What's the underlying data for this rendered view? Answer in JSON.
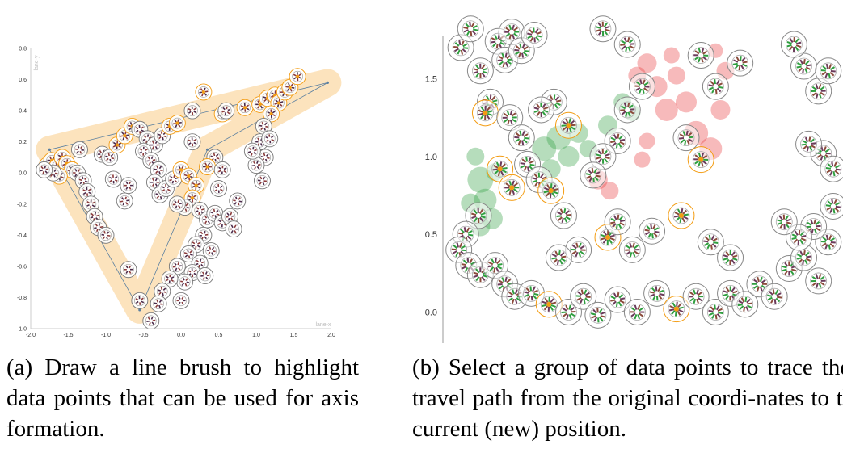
{
  "chart_data": [
    {
      "type": "scatter",
      "panel": "a",
      "title": "",
      "xlabel": "lane-x",
      "ylabel": "lane-y",
      "xlim": [
        -2.0,
        2.0
      ],
      "ylim": [
        -1.0,
        0.8
      ],
      "x_ticks": [
        "-2.0",
        "-1.5",
        "-1.0",
        "-0.5",
        "0.0",
        "0.5",
        "1.0",
        "1.5",
        "2.0"
      ],
      "y_ticks": [
        "0.8",
        "0.6",
        "0.4",
        "0.2",
        "0.0",
        "-0.2",
        "-0.4",
        "-0.6",
        "-0.8",
        "-1.0"
      ],
      "brush_path": [
        [
          -1.75,
          0.15
        ],
        [
          -0.55,
          -0.88
        ],
        [
          0.35,
          0.15
        ],
        [
          1.95,
          0.58
        ],
        [
          -1.75,
          0.15
        ]
      ],
      "brush_color": "#f5b041",
      "highlight_color": "#f39c12",
      "point_color": "#4a2a4a",
      "points": [
        {
          "x": -1.78,
          "y": 0.05,
          "h": 1
        },
        {
          "x": -1.72,
          "y": 0.08,
          "h": 1
        },
        {
          "x": -1.65,
          "y": 0.04,
          "h": 1
        },
        {
          "x": -1.58,
          "y": 0.1,
          "h": 1
        },
        {
          "x": -1.52,
          "y": 0.06,
          "h": 1
        },
        {
          "x": -1.45,
          "y": 0.02,
          "h": 1
        },
        {
          "x": -1.62,
          "y": -0.02,
          "h": 1
        },
        {
          "x": -1.7,
          "y": 0.0,
          "h": 0
        },
        {
          "x": -1.82,
          "y": 0.02,
          "h": 0
        },
        {
          "x": -1.38,
          "y": 0.0,
          "h": 0
        },
        {
          "x": -1.3,
          "y": -0.05,
          "h": 0
        },
        {
          "x": -1.25,
          "y": -0.12,
          "h": 0
        },
        {
          "x": -1.2,
          "y": -0.2,
          "h": 0
        },
        {
          "x": -1.15,
          "y": -0.28,
          "h": 0
        },
        {
          "x": -1.1,
          "y": -0.35,
          "h": 0
        },
        {
          "x": -1.35,
          "y": 0.15,
          "h": 0
        },
        {
          "x": -1.05,
          "y": 0.12,
          "h": 0
        },
        {
          "x": -0.95,
          "y": 0.1,
          "h": 0
        },
        {
          "x": -0.85,
          "y": 0.18,
          "h": 1
        },
        {
          "x": -0.75,
          "y": 0.24,
          "h": 1
        },
        {
          "x": -0.65,
          "y": 0.3,
          "h": 1
        },
        {
          "x": -0.55,
          "y": 0.28,
          "h": 0
        },
        {
          "x": -0.45,
          "y": 0.22,
          "h": 0
        },
        {
          "x": -0.35,
          "y": 0.18,
          "h": 0
        },
        {
          "x": -0.25,
          "y": 0.24,
          "h": 0
        },
        {
          "x": -0.15,
          "y": 0.3,
          "h": 1
        },
        {
          "x": -0.05,
          "y": 0.32,
          "h": 1
        },
        {
          "x": 0.15,
          "y": 0.4,
          "h": 0
        },
        {
          "x": 0.55,
          "y": 0.38,
          "h": 1
        },
        {
          "x": 0.3,
          "y": 0.52,
          "h": 1
        },
        {
          "x": 0.85,
          "y": 0.42,
          "h": 1
        },
        {
          "x": 1.05,
          "y": 0.44,
          "h": 1
        },
        {
          "x": 1.15,
          "y": 0.48,
          "h": 1
        },
        {
          "x": 1.25,
          "y": 0.5,
          "h": 1
        },
        {
          "x": 1.3,
          "y": 0.45,
          "h": 1
        },
        {
          "x": 1.38,
          "y": 0.52,
          "h": 1
        },
        {
          "x": 1.45,
          "y": 0.55,
          "h": 1
        },
        {
          "x": 1.55,
          "y": 0.62,
          "h": 1
        },
        {
          "x": 1.2,
          "y": 0.38,
          "h": 1
        },
        {
          "x": 1.1,
          "y": 0.3,
          "h": 0
        },
        {
          "x": 1.05,
          "y": 0.2,
          "h": 0
        },
        {
          "x": 1.12,
          "y": 0.1,
          "h": 0
        },
        {
          "x": 1.0,
          "y": 0.05,
          "h": 0
        },
        {
          "x": 1.08,
          "y": -0.05,
          "h": 0
        },
        {
          "x": 0.95,
          "y": 0.14,
          "h": 0
        },
        {
          "x": 1.18,
          "y": 0.22,
          "h": 0
        },
        {
          "x": -0.5,
          "y": 0.14,
          "h": 0
        },
        {
          "x": -0.4,
          "y": 0.08,
          "h": 0
        },
        {
          "x": -0.3,
          "y": 0.02,
          "h": 0
        },
        {
          "x": -0.35,
          "y": -0.06,
          "h": 0
        },
        {
          "x": -0.28,
          "y": -0.14,
          "h": 0
        },
        {
          "x": -0.2,
          "y": -0.1,
          "h": 0
        },
        {
          "x": -0.1,
          "y": -0.04,
          "h": 0
        },
        {
          "x": 0.0,
          "y": 0.02,
          "h": 1
        },
        {
          "x": 0.1,
          "y": -0.02,
          "h": 1
        },
        {
          "x": 0.2,
          "y": -0.08,
          "h": 1
        },
        {
          "x": 0.15,
          "y": -0.16,
          "h": 1
        },
        {
          "x": 0.05,
          "y": -0.22,
          "h": 0
        },
        {
          "x": -0.05,
          "y": -0.2,
          "h": 0
        },
        {
          "x": 0.25,
          "y": -0.24,
          "h": 0
        },
        {
          "x": 0.35,
          "y": -0.3,
          "h": 0
        },
        {
          "x": 0.45,
          "y": -0.26,
          "h": 0
        },
        {
          "x": 0.55,
          "y": -0.32,
          "h": 0
        },
        {
          "x": 0.65,
          "y": -0.28,
          "h": 0
        },
        {
          "x": 0.7,
          "y": -0.36,
          "h": 0
        },
        {
          "x": 0.3,
          "y": -0.4,
          "h": 0
        },
        {
          "x": 0.2,
          "y": -0.46,
          "h": 0
        },
        {
          "x": 0.1,
          "y": -0.52,
          "h": 0
        },
        {
          "x": 0.25,
          "y": -0.58,
          "h": 0
        },
        {
          "x": 0.15,
          "y": -0.64,
          "h": 0
        },
        {
          "x": 0.05,
          "y": -0.7,
          "h": 0
        },
        {
          "x": 0.32,
          "y": -0.66,
          "h": 0
        },
        {
          "x": 0.4,
          "y": -0.5,
          "h": 0
        },
        {
          "x": -0.05,
          "y": -0.6,
          "h": 0
        },
        {
          "x": -0.15,
          "y": -0.68,
          "h": 0
        },
        {
          "x": -0.25,
          "y": -0.76,
          "h": 0
        },
        {
          "x": -0.3,
          "y": -0.84,
          "h": 0
        },
        {
          "x": 0.0,
          "y": -0.82,
          "h": 0
        },
        {
          "x": 0.45,
          "y": 0.1,
          "h": 0
        },
        {
          "x": 0.35,
          "y": 0.04,
          "h": 1
        },
        {
          "x": 0.55,
          "y": 0.02,
          "h": 0
        },
        {
          "x": 0.5,
          "y": -0.1,
          "h": 0
        },
        {
          "x": 0.75,
          "y": -0.18,
          "h": 0
        },
        {
          "x": -0.75,
          "y": -0.18,
          "h": 0
        },
        {
          "x": -0.7,
          "y": -0.08,
          "h": 0
        },
        {
          "x": -1.0,
          "y": -0.4,
          "h": 0
        },
        {
          "x": -0.55,
          "y": -0.82,
          "h": 0
        },
        {
          "x": -0.4,
          "y": -0.95,
          "h": 0
        },
        {
          "x": -0.7,
          "y": -0.62,
          "h": 0
        },
        {
          "x": 0.15,
          "y": 0.2,
          "h": 0
        },
        {
          "x": 0.6,
          "y": 0.4,
          "h": 0
        },
        {
          "x": -0.9,
          "y": -0.04,
          "h": 0
        }
      ]
    },
    {
      "type": "scatter",
      "panel": "b",
      "title": "",
      "xlabel": "",
      "ylabel": "",
      "ylim": [
        -0.2,
        1.85
      ],
      "y_ticks": [
        "1.5",
        "1.0",
        "0.5",
        "0.0"
      ],
      "colors": {
        "green": "#2e9e3e",
        "red": "#e8383d",
        "orange": "#f39c12",
        "glyph": "#555555"
      },
      "points": [
        {
          "x": 0.1,
          "y": 1.7,
          "c": "g"
        },
        {
          "x": 0.2,
          "y": 1.82,
          "c": "g"
        },
        {
          "x": 0.3,
          "y": 1.55,
          "c": "g"
        },
        {
          "x": 0.48,
          "y": 1.74,
          "c": "g"
        },
        {
          "x": 0.55,
          "y": 1.62,
          "c": "g"
        },
        {
          "x": 0.62,
          "y": 1.8,
          "c": "g"
        },
        {
          "x": 0.72,
          "y": 1.68,
          "c": "g"
        },
        {
          "x": 0.85,
          "y": 1.78,
          "c": "g"
        },
        {
          "x": 0.4,
          "y": 1.35,
          "c": "g"
        },
        {
          "x": 0.35,
          "y": 1.28,
          "c": "o"
        },
        {
          "x": 0.6,
          "y": 1.25,
          "c": "g"
        },
        {
          "x": 0.72,
          "y": 1.12,
          "c": "g"
        },
        {
          "x": 0.78,
          "y": 0.95,
          "c": "g"
        },
        {
          "x": 0.5,
          "y": 0.92,
          "c": "o"
        },
        {
          "x": 0.62,
          "y": 0.8,
          "c": "o"
        },
        {
          "x": 0.9,
          "y": 0.85,
          "c": "g"
        },
        {
          "x": 1.02,
          "y": 0.78,
          "c": "o"
        },
        {
          "x": 1.15,
          "y": 0.62,
          "c": "g"
        },
        {
          "x": 0.28,
          "y": 0.62,
          "c": "g"
        },
        {
          "x": 0.15,
          "y": 0.5,
          "c": "g"
        },
        {
          "x": 0.08,
          "y": 0.4,
          "c": "g"
        },
        {
          "x": 0.18,
          "y": 0.3,
          "c": "g"
        },
        {
          "x": 0.3,
          "y": 0.24,
          "c": "g"
        },
        {
          "x": 0.45,
          "y": 0.3,
          "c": "g"
        },
        {
          "x": 0.55,
          "y": 0.18,
          "c": "g"
        },
        {
          "x": 0.65,
          "y": 0.1,
          "c": "g"
        },
        {
          "x": 0.82,
          "y": 0.12,
          "c": "g"
        },
        {
          "x": 1.0,
          "y": 0.05,
          "c": "o"
        },
        {
          "x": 1.2,
          "y": 0.0,
          "c": "g"
        },
        {
          "x": 1.35,
          "y": 0.1,
          "c": "g"
        },
        {
          "x": 1.5,
          "y": -0.02,
          "c": "g"
        },
        {
          "x": 1.7,
          "y": 0.08,
          "c": "g"
        },
        {
          "x": 1.9,
          "y": 0.0,
          "c": "g"
        },
        {
          "x": 2.1,
          "y": 0.12,
          "c": "g"
        },
        {
          "x": 2.3,
          "y": 0.02,
          "c": "o"
        },
        {
          "x": 2.5,
          "y": 0.1,
          "c": "g"
        },
        {
          "x": 2.7,
          "y": 0.0,
          "c": "g"
        },
        {
          "x": 2.85,
          "y": 0.12,
          "c": "g"
        },
        {
          "x": 3.0,
          "y": 0.05,
          "c": "g"
        },
        {
          "x": 3.15,
          "y": 0.18,
          "c": "g"
        },
        {
          "x": 3.3,
          "y": 0.1,
          "c": "g"
        },
        {
          "x": 3.45,
          "y": 0.28,
          "c": "g"
        },
        {
          "x": 3.6,
          "y": 0.35,
          "c": "g"
        },
        {
          "x": 3.75,
          "y": 0.2,
          "c": "g"
        },
        {
          "x": 3.85,
          "y": 0.45,
          "c": "g"
        },
        {
          "x": 3.7,
          "y": 0.55,
          "c": "g"
        },
        {
          "x": 3.55,
          "y": 0.48,
          "c": "g"
        },
        {
          "x": 3.4,
          "y": 0.58,
          "c": "g"
        },
        {
          "x": 3.9,
          "y": 0.68,
          "c": "g"
        },
        {
          "x": 3.8,
          "y": 1.02,
          "c": "g"
        },
        {
          "x": 3.65,
          "y": 1.08,
          "c": "g"
        },
        {
          "x": 3.9,
          "y": 0.92,
          "c": "g"
        },
        {
          "x": 3.75,
          "y": 1.42,
          "c": "g"
        },
        {
          "x": 3.6,
          "y": 1.58,
          "c": "g"
        },
        {
          "x": 3.85,
          "y": 1.55,
          "c": "g"
        },
        {
          "x": 3.5,
          "y": 1.72,
          "c": "g"
        },
        {
          "x": 2.95,
          "y": 1.6,
          "c": "g"
        },
        {
          "x": 2.7,
          "y": 1.45,
          "c": "g"
        },
        {
          "x": 2.55,
          "y": 1.65,
          "c": "g"
        },
        {
          "x": 2.4,
          "y": 1.12,
          "c": "g"
        },
        {
          "x": 2.55,
          "y": 0.98,
          "c": "o"
        },
        {
          "x": 2.35,
          "y": 0.62,
          "c": "o"
        },
        {
          "x": 1.95,
          "y": 1.45,
          "c": "g"
        },
        {
          "x": 1.8,
          "y": 1.3,
          "c": "g"
        },
        {
          "x": 1.7,
          "y": 1.1,
          "c": "g"
        },
        {
          "x": 1.55,
          "y": 1.0,
          "c": "g"
        },
        {
          "x": 1.45,
          "y": 0.88,
          "c": "g"
        },
        {
          "x": 1.6,
          "y": 0.48,
          "c": "o"
        },
        {
          "x": 1.85,
          "y": 0.4,
          "c": "g"
        },
        {
          "x": 1.7,
          "y": 0.58,
          "c": "g"
        },
        {
          "x": 2.05,
          "y": 0.52,
          "c": "g"
        },
        {
          "x": 1.3,
          "y": 0.4,
          "c": "g"
        },
        {
          "x": 1.1,
          "y": 0.35,
          "c": "g"
        },
        {
          "x": 2.85,
          "y": 0.35,
          "c": "g"
        },
        {
          "x": 2.65,
          "y": 0.45,
          "c": "g"
        },
        {
          "x": 1.8,
          "y": 1.72,
          "c": "g"
        },
        {
          "x": 1.55,
          "y": 1.82,
          "c": "g"
        },
        {
          "x": 1.05,
          "y": 1.35,
          "c": "g"
        },
        {
          "x": 1.2,
          "y": 1.2,
          "c": "o"
        },
        {
          "x": 0.92,
          "y": 1.3,
          "c": "g"
        }
      ],
      "blobs": [
        {
          "x": 0.3,
          "y": 0.85,
          "r": 1.0,
          "c": "green"
        },
        {
          "x": 0.35,
          "y": 0.72,
          "r": 0.8,
          "c": "green"
        },
        {
          "x": 0.42,
          "y": 0.6,
          "r": 0.7,
          "c": "green"
        },
        {
          "x": 0.3,
          "y": 0.55,
          "r": 0.6,
          "c": "green"
        },
        {
          "x": 0.25,
          "y": 1.0,
          "r": 0.5,
          "c": "green"
        },
        {
          "x": 0.45,
          "y": 0.9,
          "r": 0.5,
          "c": "green"
        },
        {
          "x": 0.2,
          "y": 0.7,
          "r": 0.6,
          "c": "green"
        },
        {
          "x": 0.95,
          "y": 1.05,
          "r": 0.9,
          "c": "green"
        },
        {
          "x": 1.1,
          "y": 1.12,
          "r": 0.9,
          "c": "green"
        },
        {
          "x": 1.2,
          "y": 1.0,
          "r": 0.7,
          "c": "green"
        },
        {
          "x": 1.02,
          "y": 0.92,
          "r": 0.6,
          "c": "green"
        },
        {
          "x": 1.3,
          "y": 1.15,
          "r": 0.6,
          "c": "green"
        },
        {
          "x": 1.4,
          "y": 1.05,
          "r": 0.5,
          "c": "green"
        },
        {
          "x": 1.6,
          "y": 1.2,
          "r": 0.6,
          "c": "green"
        },
        {
          "x": 1.75,
          "y": 1.35,
          "r": 0.5,
          "c": "green"
        },
        {
          "x": 1.85,
          "y": 1.28,
          "r": 0.4,
          "c": "green"
        },
        {
          "x": 1.0,
          "y": 0.8,
          "r": 0.4,
          "c": "green"
        },
        {
          "x": 1.9,
          "y": 1.52,
          "r": 0.5,
          "c": "red"
        },
        {
          "x": 2.0,
          "y": 1.6,
          "r": 0.6,
          "c": "red"
        },
        {
          "x": 2.1,
          "y": 1.45,
          "r": 0.7,
          "c": "red"
        },
        {
          "x": 2.2,
          "y": 1.3,
          "r": 0.8,
          "c": "red"
        },
        {
          "x": 2.3,
          "y": 1.52,
          "r": 0.5,
          "c": "red"
        },
        {
          "x": 2.4,
          "y": 1.35,
          "r": 0.7,
          "c": "red"
        },
        {
          "x": 2.5,
          "y": 1.15,
          "r": 0.9,
          "c": "red"
        },
        {
          "x": 2.65,
          "y": 1.05,
          "r": 0.8,
          "c": "red"
        },
        {
          "x": 2.75,
          "y": 1.3,
          "r": 0.6,
          "c": "red"
        },
        {
          "x": 2.8,
          "y": 1.55,
          "r": 0.5,
          "c": "red"
        },
        {
          "x": 2.25,
          "y": 1.65,
          "r": 0.4,
          "c": "red"
        },
        {
          "x": 2.7,
          "y": 1.68,
          "r": 0.3,
          "c": "red"
        },
        {
          "x": 1.5,
          "y": 0.85,
          "r": 0.6,
          "c": "red"
        },
        {
          "x": 1.62,
          "y": 0.78,
          "r": 0.5,
          "c": "red"
        },
        {
          "x": 2.0,
          "y": 1.1,
          "r": 0.4,
          "c": "red"
        },
        {
          "x": 1.95,
          "y": 0.98,
          "r": 0.4,
          "c": "red"
        }
      ]
    }
  ],
  "captions": {
    "a": "(a) Draw a line brush to highlight data points that can be used for axis formation.",
    "b": "(b) Select a group of data points to trace their travel path from the original coordi-nates to the current (new) position."
  }
}
